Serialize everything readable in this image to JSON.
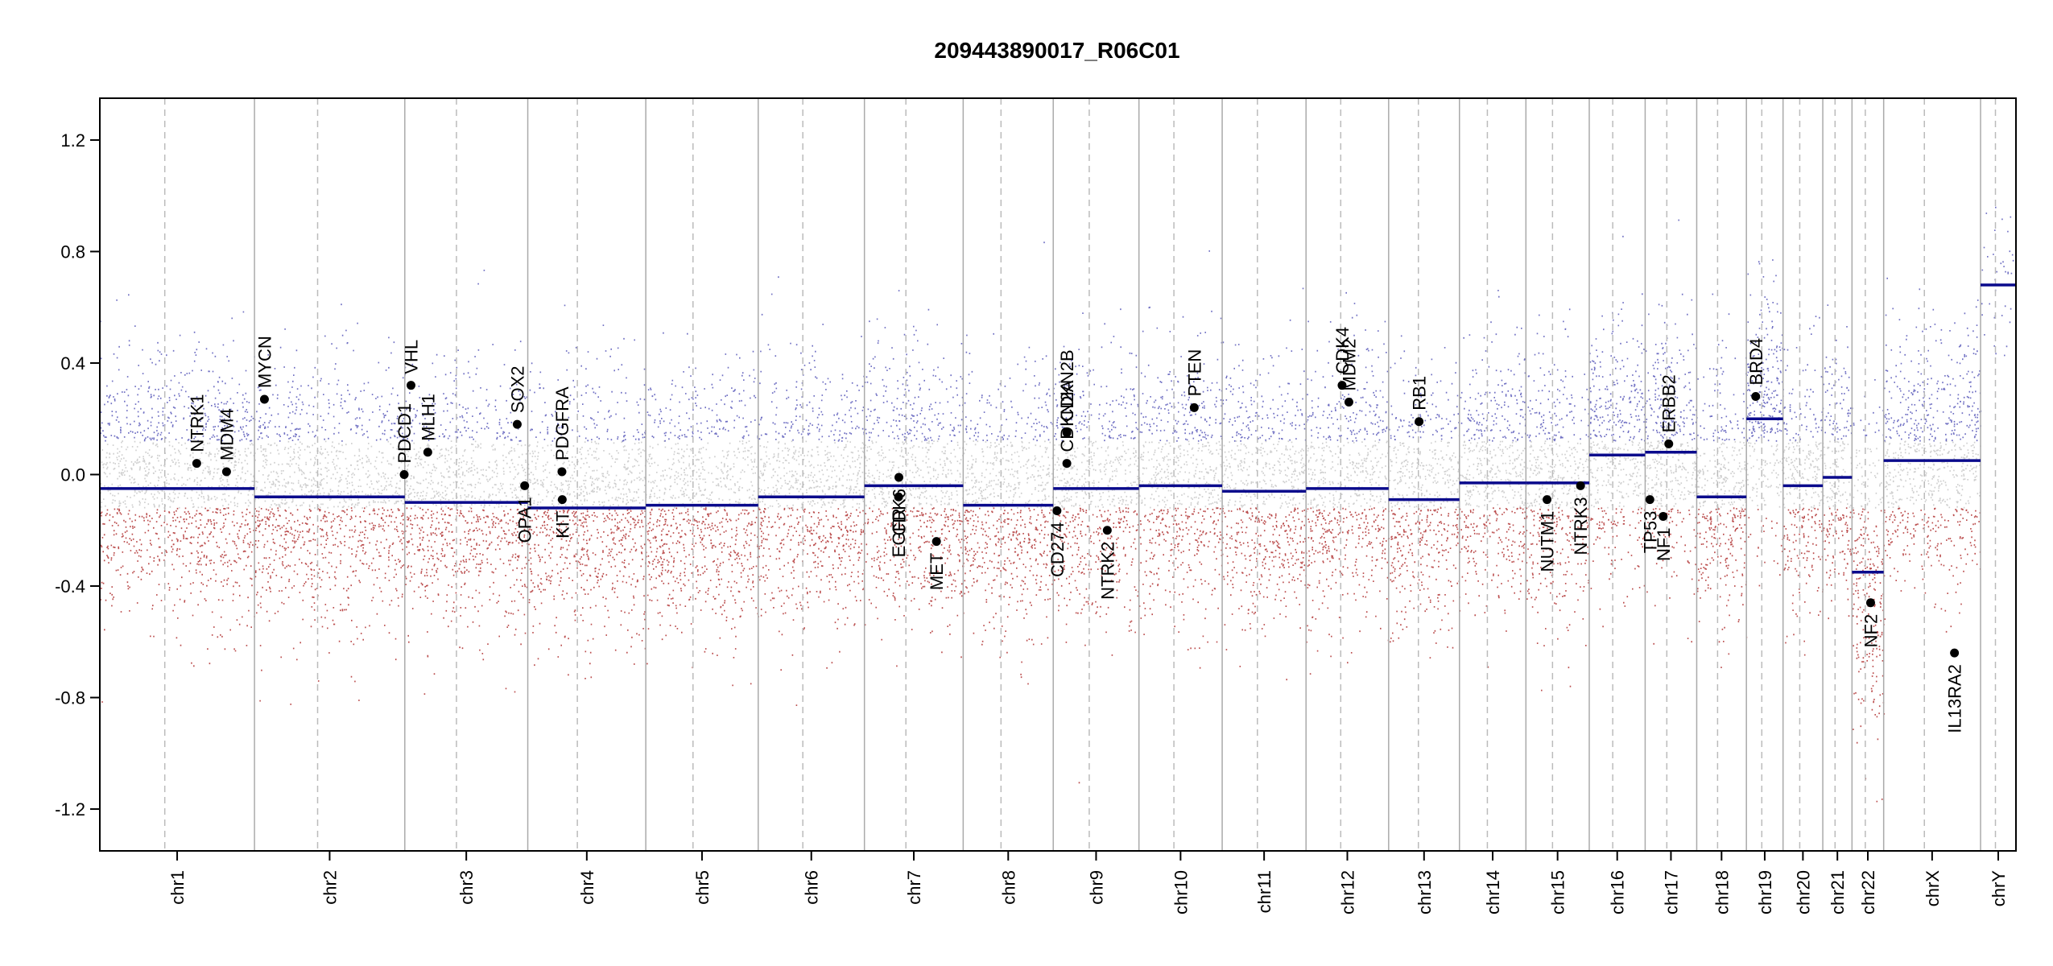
{
  "chart_data": {
    "type": "scatter",
    "title": "209443890017_R06C01",
    "xlabel": "",
    "ylabel": "",
    "ylim": [
      -1.35,
      1.35
    ],
    "y_ticks": [
      "1.2",
      "0.8",
      "0.4",
      "0.0",
      "-0.4",
      "-0.8",
      "-1.2"
    ],
    "y_tick_values": [
      1.2,
      0.8,
      0.4,
      0.0,
      -0.4,
      -0.8,
      -1.2
    ],
    "grid": false,
    "colors": {
      "gain": "#3333aa",
      "loss": "#aa2222",
      "neutral": "#bbbbbb",
      "segment": "#0a0a8c",
      "gene": "#000000",
      "boundary": "#bbbbbb"
    },
    "chromosomes": [
      {
        "name": "chr1",
        "length": 249
      },
      {
        "name": "chr2",
        "length": 242
      },
      {
        "name": "chr3",
        "length": 198
      },
      {
        "name": "chr4",
        "length": 190
      },
      {
        "name": "chr5",
        "length": 181
      },
      {
        "name": "chr6",
        "length": 171
      },
      {
        "name": "chr7",
        "length": 159
      },
      {
        "name": "chr8",
        "length": 145
      },
      {
        "name": "chr9",
        "length": 138
      },
      {
        "name": "chr10",
        "length": 134
      },
      {
        "name": "chr11",
        "length": 135
      },
      {
        "name": "chr12",
        "length": 133
      },
      {
        "name": "chr13",
        "length": 114
      },
      {
        "name": "chr14",
        "length": 107
      },
      {
        "name": "chr15",
        "length": 102
      },
      {
        "name": "chr16",
        "length": 90
      },
      {
        "name": "chr17",
        "length": 83
      },
      {
        "name": "chr18",
        "length": 80
      },
      {
        "name": "chr19",
        "length": 59
      },
      {
        "name": "chr20",
        "length": 64
      },
      {
        "name": "chr21",
        "length": 47
      },
      {
        "name": "chr22",
        "length": 51
      },
      {
        "name": "chrX",
        "length": 156
      },
      {
        "name": "chrY",
        "length": 57
      }
    ],
    "segments": [
      {
        "chr": "chr1",
        "value": -0.05
      },
      {
        "chr": "chr2",
        "value": -0.08
      },
      {
        "chr": "chr3",
        "value": -0.1
      },
      {
        "chr": "chr4",
        "value": -0.12
      },
      {
        "chr": "chr5",
        "value": -0.11
      },
      {
        "chr": "chr6",
        "value": -0.08
      },
      {
        "chr": "chr7",
        "value": -0.04
      },
      {
        "chr": "chr8",
        "value": -0.11
      },
      {
        "chr": "chr9",
        "value": -0.05
      },
      {
        "chr": "chr10",
        "value": -0.04
      },
      {
        "chr": "chr11",
        "value": -0.06
      },
      {
        "chr": "chr12",
        "value": -0.05
      },
      {
        "chr": "chr13",
        "value": -0.09
      },
      {
        "chr": "chr14",
        "value": -0.03
      },
      {
        "chr": "chr15",
        "value": -0.03
      },
      {
        "chr": "chr16",
        "value": 0.07
      },
      {
        "chr": "chr17",
        "value": 0.08
      },
      {
        "chr": "chr18",
        "value": -0.08
      },
      {
        "chr": "chr19",
        "value": 0.2
      },
      {
        "chr": "chr20",
        "value": -0.04
      },
      {
        "chr": "chr21",
        "value": -0.01
      },
      {
        "chr": "chr22",
        "value": -0.35
      },
      {
        "chr": "chrX",
        "value": 0.05
      },
      {
        "chr": "chrY",
        "value": 0.68
      }
    ],
    "genes": [
      {
        "name": "NTRK1",
        "chr": "chr1",
        "pos": 156,
        "value": 0.04
      },
      {
        "name": "MDM4",
        "chr": "chr1",
        "pos": 204,
        "value": 0.01
      },
      {
        "name": "MYCN",
        "chr": "chr2",
        "pos": 16,
        "value": 0.27
      },
      {
        "name": "PDCD1",
        "chr": "chr2",
        "pos": 241,
        "value": 0.0
      },
      {
        "name": "VHL",
        "chr": "chr3",
        "pos": 10,
        "value": 0.32
      },
      {
        "name": "MLH1",
        "chr": "chr3",
        "pos": 37,
        "value": 0.08
      },
      {
        "name": "SOX2",
        "chr": "chr3",
        "pos": 181,
        "value": 0.18
      },
      {
        "name": "OPA1",
        "chr": "chr3",
        "pos": 193,
        "value": -0.04
      },
      {
        "name": "PDGFRA",
        "chr": "chr4",
        "pos": 55,
        "value": 0.01
      },
      {
        "name": "KIT",
        "chr": "chr4",
        "pos": 55.5,
        "value": -0.09
      },
      {
        "name": "EGFR",
        "chr": "chr7",
        "pos": 55,
        "value": -0.08
      },
      {
        "name": "CDK6",
        "chr": "chr7",
        "pos": 55.5,
        "value": -0.01
      },
      {
        "name": "MET",
        "chr": "chr7",
        "pos": 116,
        "value": -0.24
      },
      {
        "name": "CD274",
        "chr": "chr9",
        "pos": 6,
        "value": -0.13
      },
      {
        "name": "CDKN2A",
        "chr": "chr9",
        "pos": 21.9,
        "value": 0.04
      },
      {
        "name": "CDKN2B",
        "chr": "chr9",
        "pos": 22,
        "value": 0.15
      },
      {
        "name": "NTRK2",
        "chr": "chr9",
        "pos": 87,
        "value": -0.2
      },
      {
        "name": "PTEN",
        "chr": "chr10",
        "pos": 89,
        "value": 0.24
      },
      {
        "name": "CDK4",
        "chr": "chr12",
        "pos": 58,
        "value": 0.32
      },
      {
        "name": "MDM2",
        "chr": "chr12",
        "pos": 69,
        "value": 0.26
      },
      {
        "name": "RB1",
        "chr": "chr13",
        "pos": 49,
        "value": 0.19
      },
      {
        "name": "NUTM1",
        "chr": "chr15",
        "pos": 34,
        "value": -0.09
      },
      {
        "name": "NTRK3",
        "chr": "chr15",
        "pos": 88,
        "value": -0.04
      },
      {
        "name": "TP53",
        "chr": "chr17",
        "pos": 7.6,
        "value": -0.09
      },
      {
        "name": "NF1",
        "chr": "chr17",
        "pos": 29,
        "value": -0.15
      },
      {
        "name": "ERBB2",
        "chr": "chr17",
        "pos": 38,
        "value": 0.11
      },
      {
        "name": "BRD4",
        "chr": "chr19",
        "pos": 15,
        "value": 0.28
      },
      {
        "name": "NF2",
        "chr": "chr22",
        "pos": 30,
        "value": -0.46
      },
      {
        "name": "IL13RA2",
        "chr": "chrX",
        "pos": 114,
        "value": -0.64
      }
    ]
  }
}
